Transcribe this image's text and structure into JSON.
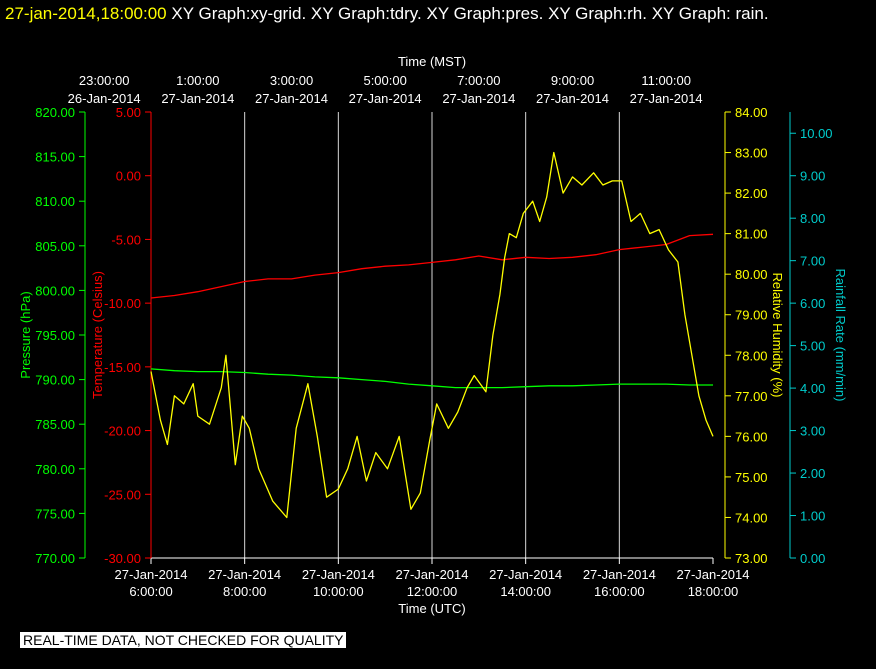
{
  "header": {
    "timestamp": "27-jan-2014,18:00:00",
    "graphs": "XY Graph:xy-grid.  XY Graph:tdry.  XY Graph:pres.  XY Graph:rh.  XY Graph: rain."
  },
  "disclaimer": "REAL-TIME DATA, NOT CHECKED FOR QUALITY",
  "colors": {
    "background": "#000000",
    "temperature": "#ff0000",
    "pressure": "#00ff00",
    "humidity": "#ffff00",
    "rain": "#00cccc",
    "grid": "#ffffff"
  },
  "chart_data": {
    "type": "line",
    "grid": "vertical lines at every 2 hours",
    "x_top": {
      "title": "Time (MST)",
      "ticks": [
        {
          "hhmm": "23:00:00",
          "date": "26-Jan-2014"
        },
        {
          "hhmm": "1:00:00",
          "date": "27-Jan-2014"
        },
        {
          "hhmm": "3:00:00",
          "date": "27-Jan-2014"
        },
        {
          "hhmm": "5:00:00",
          "date": "27-Jan-2014"
        },
        {
          "hhmm": "7:00:00",
          "date": "27-Jan-2014"
        },
        {
          "hhmm": "9:00:00",
          "date": "27-Jan-2014"
        },
        {
          "hhmm": "11:00:00",
          "date": "27-Jan-2014"
        }
      ]
    },
    "x_bottom": {
      "title": "Time (UTC)",
      "range_hours": [
        6,
        18
      ],
      "tick_hours": [
        6,
        8,
        10,
        12,
        14,
        16,
        18
      ],
      "ticks": [
        {
          "date": "27-Jan-2014",
          "hhmm": "6:00:00"
        },
        {
          "date": "27-Jan-2014",
          "hhmm": "8:00:00"
        },
        {
          "date": "27-Jan-2014",
          "hhmm": "10:00:00"
        },
        {
          "date": "27-Jan-2014",
          "hhmm": "12:00:00"
        },
        {
          "date": "27-Jan-2014",
          "hhmm": "14:00:00"
        },
        {
          "date": "27-Jan-2014",
          "hhmm": "16:00:00"
        },
        {
          "date": "27-Jan-2014",
          "hhmm": "18:00:00"
        }
      ]
    },
    "axes": {
      "pressure": {
        "label": "Pressure (hPa)",
        "ylim": [
          770,
          820
        ],
        "ticks": [
          "770.00",
          "775.00",
          "780.00",
          "785.00",
          "790.00",
          "795.00",
          "800.00",
          "805.00",
          "810.00",
          "815.00",
          "820.00"
        ]
      },
      "temperature": {
        "label": "Temperature (Celsius)",
        "ylim": [
          -30,
          5
        ],
        "ticks": [
          "-30.00",
          "-25.00",
          "-20.00",
          "-15.00",
          "-10.00",
          "-5.00",
          "0.00",
          "5.00"
        ]
      },
      "humidity": {
        "label": "Relative Humidity (%)",
        "ylim": [
          73,
          84
        ],
        "ticks": [
          "73.00",
          "74.00",
          "75.00",
          "76.00",
          "77.00",
          "78.00",
          "79.00",
          "80.00",
          "81.00",
          "82.00",
          "83.00",
          "84.00"
        ]
      },
      "rain": {
        "label": "Rainfall Rate (mm/min)",
        "ylim": [
          0,
          10.5
        ],
        "ticks": [
          "0.00",
          "1.00",
          "2.00",
          "3.00",
          "4.00",
          "5.00",
          "6.00",
          "7.00",
          "8.00",
          "9.00",
          "10.00"
        ]
      }
    },
    "series": [
      {
        "name": "Temperature",
        "axis": "temperature",
        "x": [
          6.0,
          6.5,
          7.0,
          7.5,
          8.0,
          8.5,
          9.0,
          9.5,
          10.0,
          10.5,
          11.0,
          11.5,
          12.0,
          12.5,
          13.0,
          13.5,
          14.0,
          14.5,
          15.0,
          15.5,
          16.0,
          16.5,
          17.0,
          17.5,
          18.0
        ],
        "values": [
          -9.6,
          -9.4,
          -9.1,
          -8.7,
          -8.3,
          -8.1,
          -8.1,
          -7.8,
          -7.6,
          -7.3,
          -7.1,
          -7.0,
          -6.8,
          -6.6,
          -6.3,
          -6.6,
          -6.4,
          -6.5,
          -6.4,
          -6.2,
          -5.8,
          -5.6,
          -5.4,
          -4.7,
          -4.6
        ]
      },
      {
        "name": "Pressure",
        "axis": "pressure",
        "x": [
          6.0,
          6.5,
          7.0,
          7.5,
          8.0,
          8.5,
          9.0,
          9.5,
          10.0,
          10.5,
          11.0,
          11.5,
          12.0,
          12.5,
          13.0,
          13.5,
          14.0,
          14.5,
          15.0,
          15.5,
          16.0,
          16.5,
          17.0,
          17.5,
          18.0
        ],
        "values": [
          791.2,
          791.0,
          790.9,
          790.9,
          790.8,
          790.6,
          790.5,
          790.3,
          790.2,
          790.0,
          789.8,
          789.5,
          789.3,
          789.1,
          789.1,
          789.1,
          789.2,
          789.3,
          789.3,
          789.4,
          789.5,
          789.5,
          789.5,
          789.4,
          789.4
        ]
      },
      {
        "name": "Relative Humidity",
        "axis": "humidity",
        "x": [
          6.0,
          6.2,
          6.35,
          6.5,
          6.7,
          6.9,
          7.0,
          7.25,
          7.5,
          7.6,
          7.8,
          7.95,
          8.1,
          8.3,
          8.6,
          8.9,
          9.1,
          9.35,
          9.55,
          9.75,
          10.0,
          10.2,
          10.4,
          10.6,
          10.8,
          11.05,
          11.3,
          11.55,
          11.75,
          11.95,
          12.1,
          12.35,
          12.55,
          12.75,
          12.9,
          13.15,
          13.3,
          13.45,
          13.55,
          13.65,
          13.8,
          13.95,
          14.15,
          14.3,
          14.45,
          14.6,
          14.8,
          15.0,
          15.2,
          15.45,
          15.65,
          15.85,
          16.05,
          16.25,
          16.45,
          16.65,
          16.85,
          17.05,
          17.25,
          17.4,
          17.55,
          17.7,
          17.85,
          18.0
        ],
        "values": [
          77.6,
          76.4,
          75.8,
          77.0,
          76.8,
          77.3,
          76.5,
          76.3,
          77.2,
          78.0,
          75.3,
          76.5,
          76.2,
          75.2,
          74.4,
          74.0,
          76.2,
          77.3,
          76.0,
          74.5,
          74.7,
          75.2,
          76.0,
          74.9,
          75.6,
          75.2,
          76.0,
          74.2,
          74.6,
          75.9,
          76.8,
          76.2,
          76.6,
          77.2,
          77.5,
          77.1,
          78.5,
          79.5,
          80.4,
          81.0,
          80.9,
          81.5,
          81.8,
          81.3,
          81.9,
          83.0,
          82.0,
          82.4,
          82.2,
          82.5,
          82.2,
          82.3,
          82.3,
          81.3,
          81.5,
          81.0,
          81.1,
          80.6,
          80.3,
          79.0,
          78.0,
          77.0,
          76.4,
          76.0
        ]
      },
      {
        "name": "Rainfall Rate",
        "axis": "rain",
        "x": [],
        "values": []
      }
    ]
  }
}
